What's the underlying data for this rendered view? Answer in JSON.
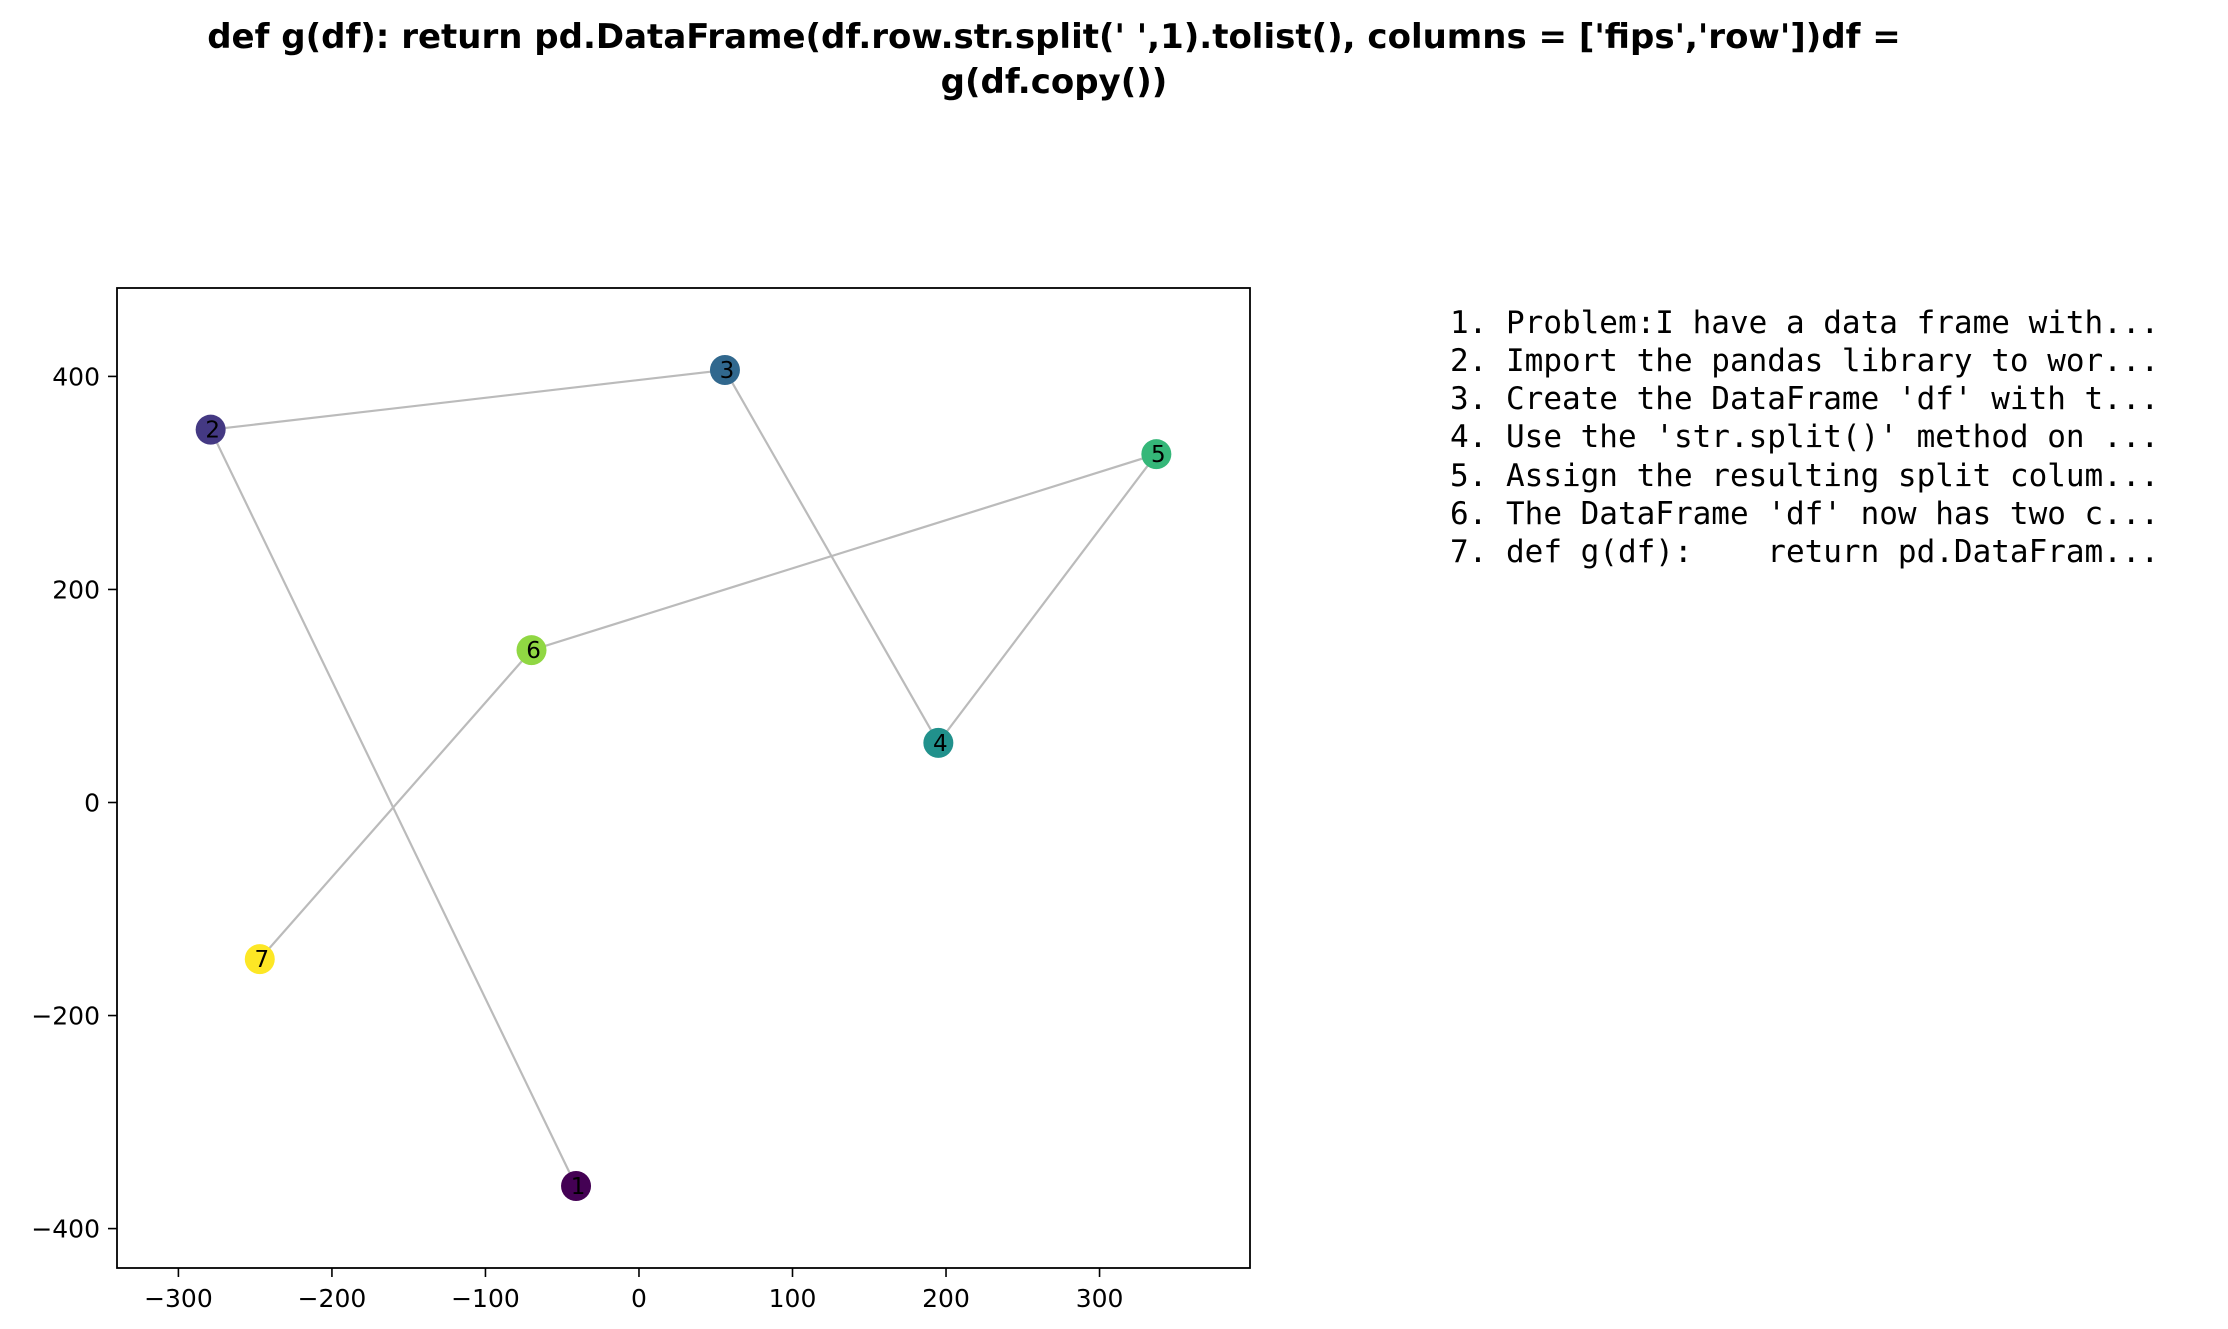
{
  "chart_data": {
    "type": "scatter",
    "title_lines": [
      "def g(df):    return pd.DataFrame(df.row.str.split(' ',1).tolist(), columns = ['fips','row'])df =",
      "g(df.copy())"
    ],
    "xlabel": "",
    "ylabel": "",
    "xlim": [
      -340,
      398
    ],
    "ylim": [
      -437,
      483
    ],
    "xticks": [
      -300,
      -200,
      -100,
      0,
      100,
      200,
      300
    ],
    "yticks": [
      -400,
      -200,
      0,
      200,
      400
    ],
    "xtick_labels": [
      "−300",
      "−200",
      "−100",
      "0",
      "100",
      "200",
      "300"
    ],
    "ytick_labels": [
      "−400",
      "−200",
      "0",
      "200",
      "400"
    ],
    "grid": false,
    "connect_points": true,
    "line_color": "#bbbbbb",
    "points": [
      {
        "label": "1",
        "x": -41,
        "y": -360,
        "color": "#440154"
      },
      {
        "label": "2",
        "x": -279,
        "y": 350,
        "color": "#443983"
      },
      {
        "label": "3",
        "x": 56,
        "y": 406,
        "color": "#31688e"
      },
      {
        "label": "4",
        "x": 195,
        "y": 56,
        "color": "#21918c"
      },
      {
        "label": "5",
        "x": 337,
        "y": 327,
        "color": "#35b779"
      },
      {
        "label": "6",
        "x": -70,
        "y": 143,
        "color": "#90d743"
      },
      {
        "label": "7",
        "x": -247,
        "y": -147,
        "color": "#fde725"
      }
    ]
  },
  "steps": [
    "1. Problem:I have a data frame with...",
    "2. Import the pandas library to wor...",
    "3. Create the DataFrame 'df' with t...",
    "4. Use the 'str.split()' method on ...",
    "5. Assign the resulting split colum...",
    "6. The DataFrame 'df' now has two c...",
    "7. def g(df):    return pd.DataFram..."
  ]
}
